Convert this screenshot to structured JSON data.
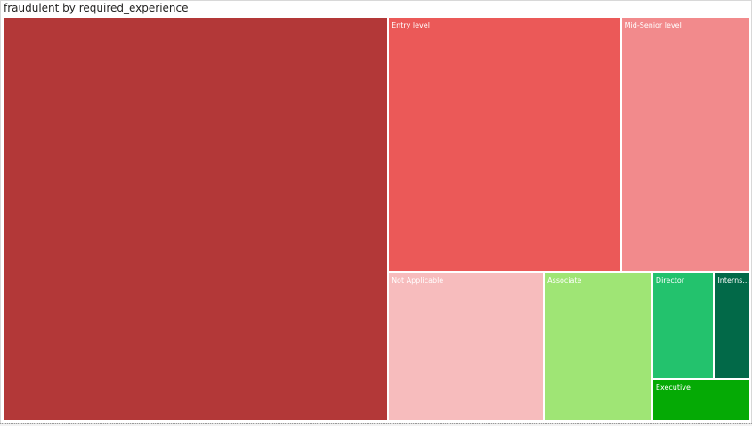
{
  "visual": {
    "title": "fraudulent by required_experience"
  },
  "chart_data": {
    "type": "treemap",
    "title": "fraudulent by required_experience",
    "items": [
      {
        "label": "",
        "value": 7050,
        "color": "#b33838"
      },
      {
        "label": "Entry level",
        "value": 2700,
        "color": "#eb5958"
      },
      {
        "label": "Mid-Senior level",
        "value": 1500,
        "color": "#f28a8c"
      },
      {
        "label": "Not Applicable",
        "value": 1050,
        "color": "#f7bcbd"
      },
      {
        "label": "Associate",
        "value": 730,
        "color": "#9fe575"
      },
      {
        "label": "Director",
        "value": 300,
        "color": "#23c26d"
      },
      {
        "label": "Interns...",
        "value": 175,
        "color": "#026948"
      },
      {
        "label": "Executive",
        "value": 185,
        "color": "#05aa05"
      }
    ]
  }
}
